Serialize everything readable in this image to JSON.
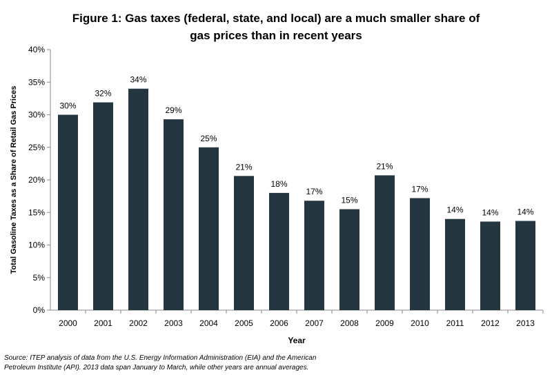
{
  "title": {
    "line1": "Figure 1: Gas taxes (federal, state, and local) are a much smaller share of",
    "line2": "gas prices than in recent years"
  },
  "source": {
    "line1": "Source: ITEP analysis of data from the U.S. Energy Information Administration (EIA) and the American",
    "line2": "Petroleum Institute (API).  2013 data span January to March, while other years are annual averages."
  },
  "chart_data": {
    "type": "bar",
    "categories": [
      "2000",
      "2001",
      "2002",
      "2003",
      "2004",
      "2005",
      "2006",
      "2007",
      "2008",
      "2009",
      "2010",
      "2011",
      "2012",
      "2013"
    ],
    "values": [
      30.0,
      31.9,
      34.0,
      29.3,
      25.0,
      20.6,
      18.0,
      16.8,
      15.5,
      20.7,
      17.2,
      14.0,
      13.6,
      13.7
    ],
    "data_labels": [
      "30%",
      "32%",
      "34%",
      "29%",
      "25%",
      "21%",
      "18%",
      "17%",
      "15%",
      "21%",
      "17%",
      "14%",
      "14%",
      "14%"
    ],
    "xlabel": "Year",
    "ylabel": "Total Gasoline Taxes as a Share of Retail Gas Prices",
    "ylim": [
      0,
      40
    ],
    "yticks": [
      "0%",
      "5%",
      "10%",
      "15%",
      "20%",
      "25%",
      "30%",
      "35%",
      "40%"
    ],
    "bar_color": "#243640",
    "grid": false,
    "legend": "none"
  }
}
